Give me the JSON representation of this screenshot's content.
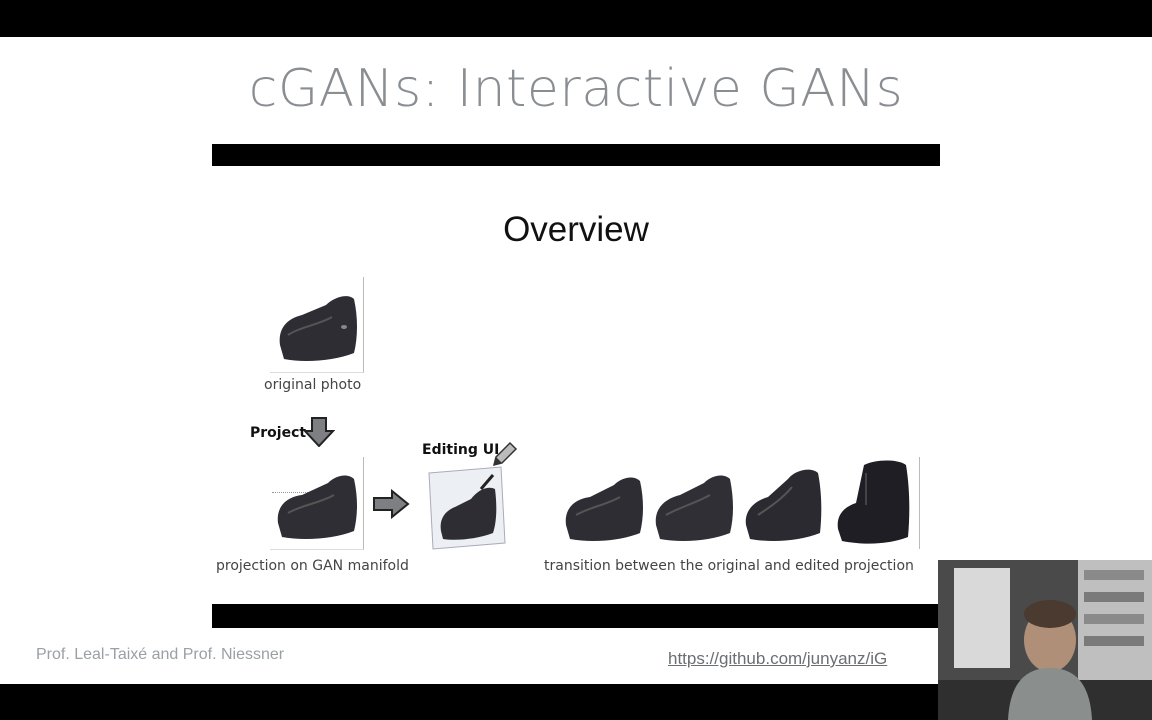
{
  "slide": {
    "title": "cGANs: Interactive GANs",
    "overview": "Overview",
    "labels": {
      "original_photo": "original photo",
      "project": "Project",
      "editing_ui": "Editing UI",
      "projection": "projection on GAN manifold",
      "transition": "transition between the original and edited projection"
    },
    "footer_author": "Prof. Leal-Taixé and Prof. Niessner",
    "footer_link": "https://github.com/junyanz/iG"
  },
  "icons": {
    "arrow_down": "arrow-down-icon",
    "arrow_right": "arrow-right-icon",
    "pencil": "pencil-icon"
  },
  "colors": {
    "title": "#8a8e92",
    "bars": "#000000",
    "shoe": "#2e2d33"
  }
}
